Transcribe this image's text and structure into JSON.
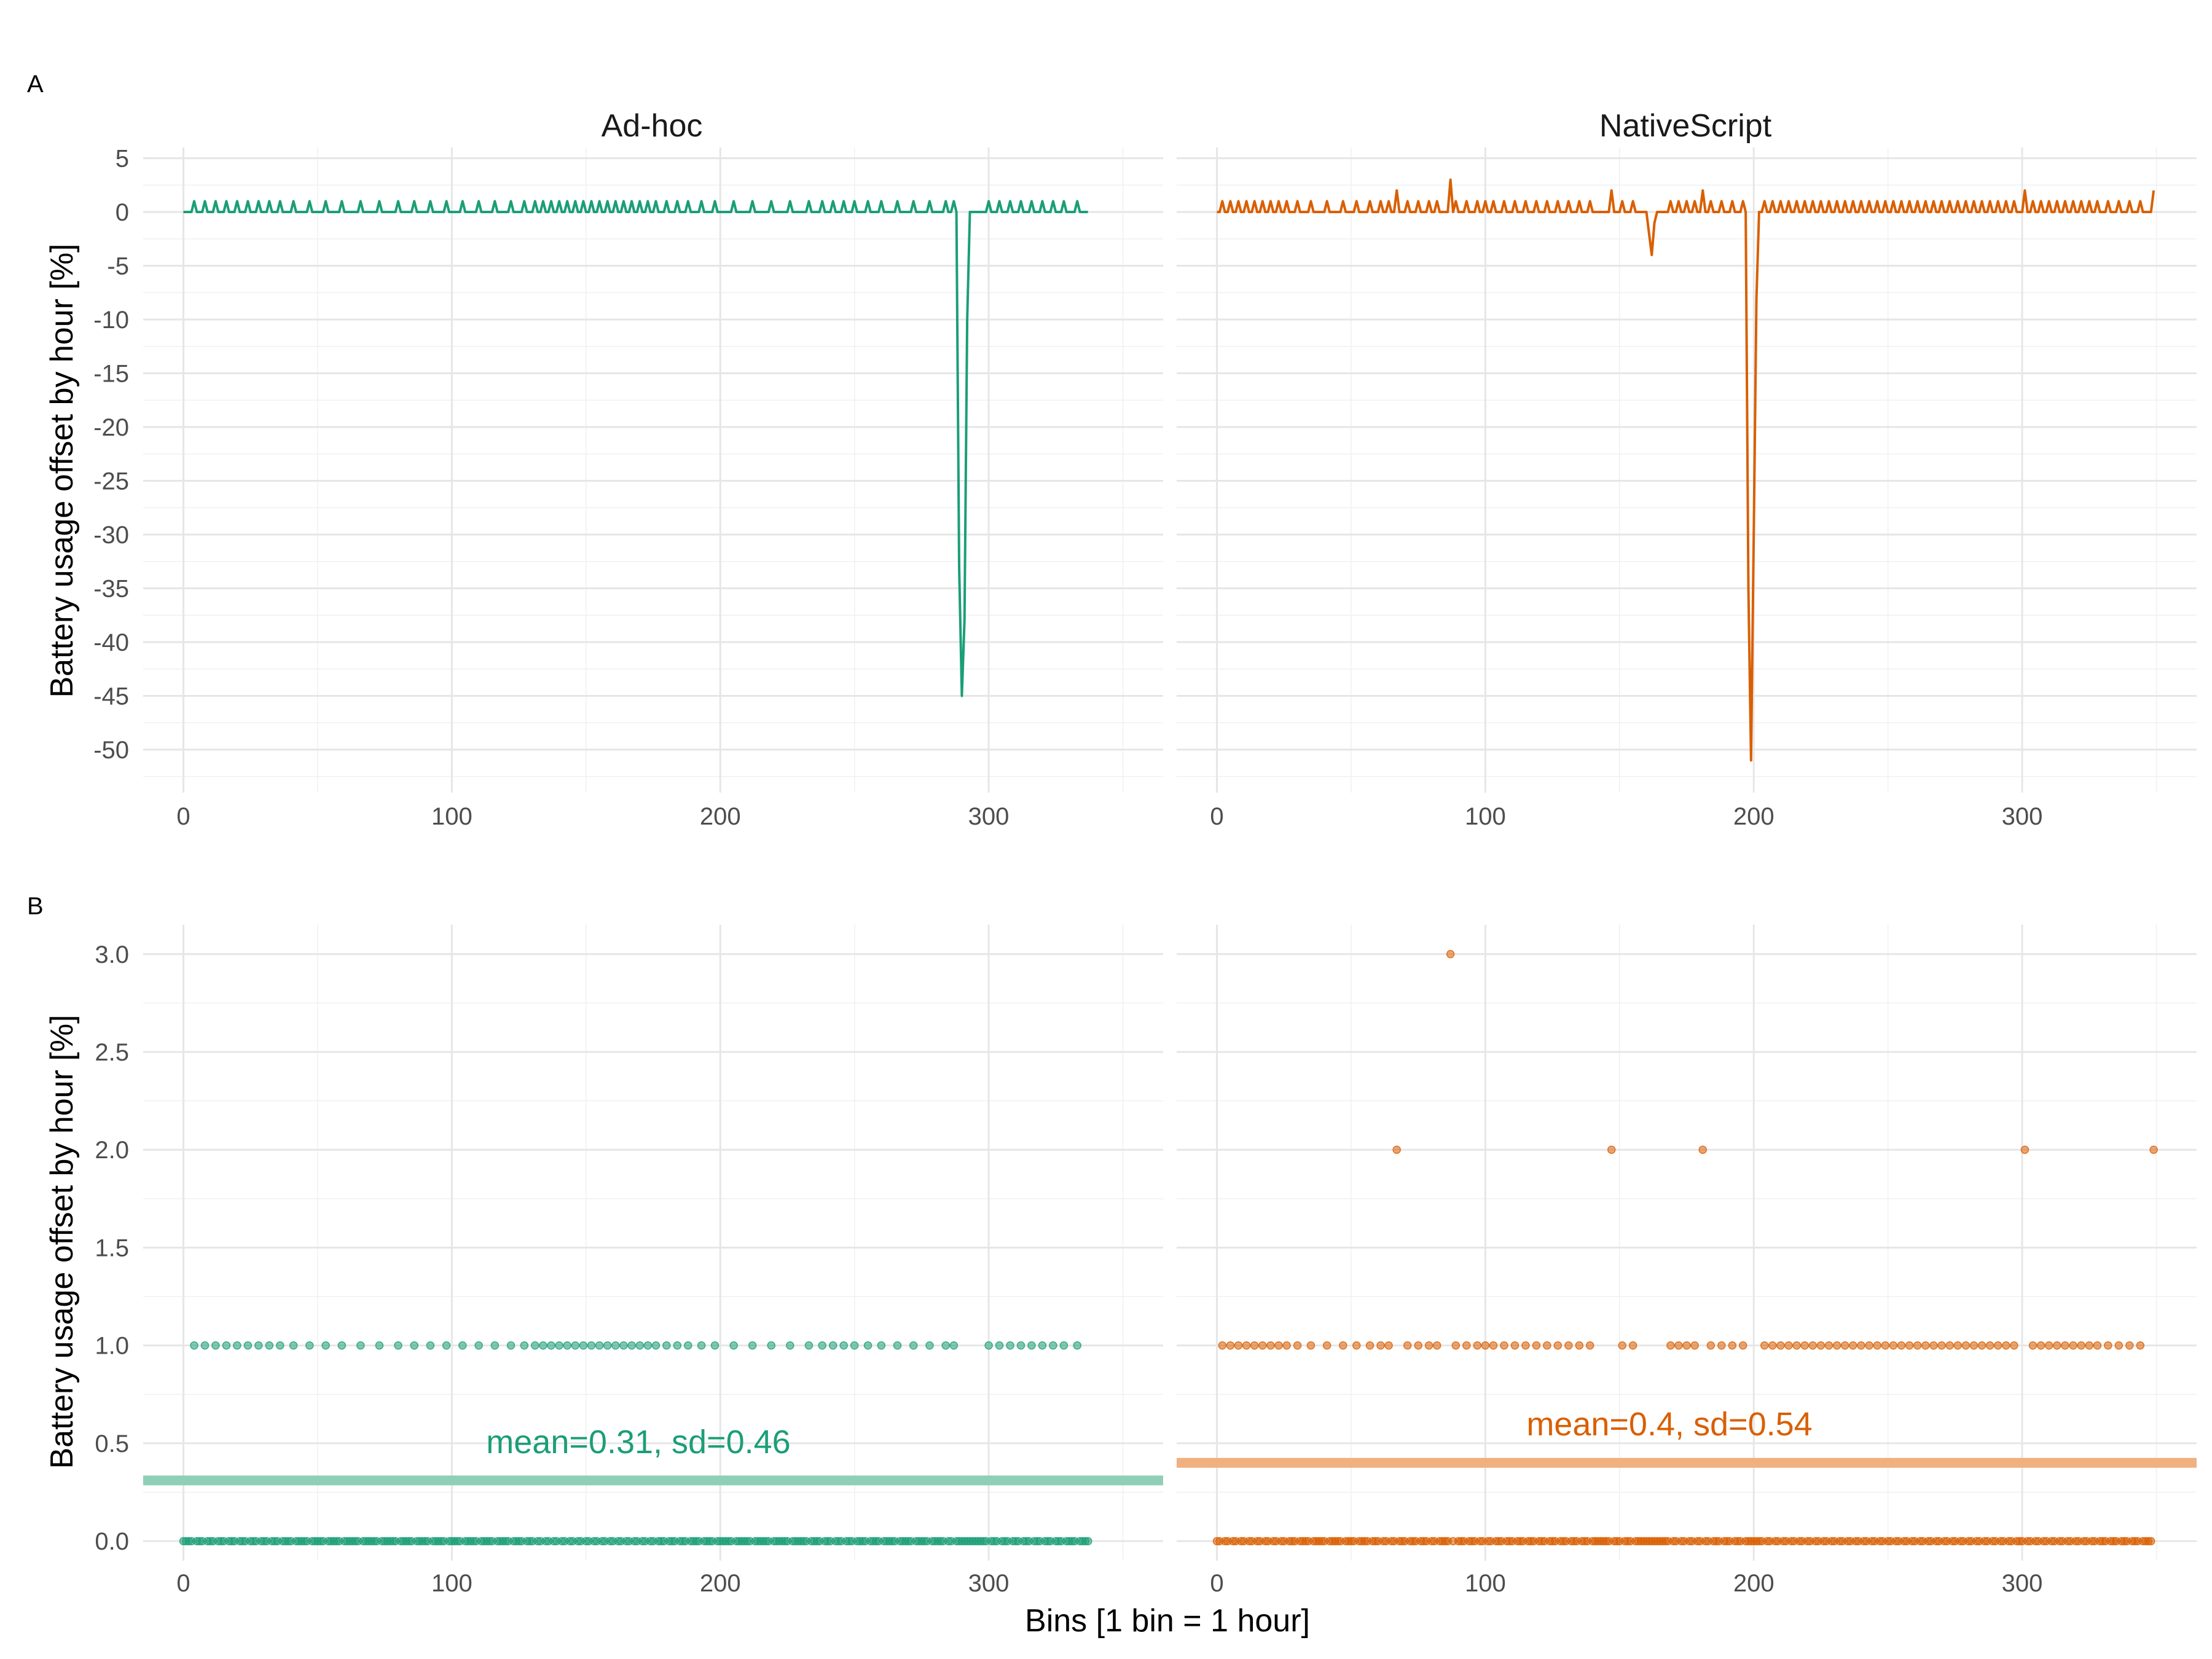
{
  "figure": {
    "panel_labels": [
      "A",
      "B"
    ],
    "x_axis_title": "Bins [1 bin = 1 hour]",
    "y_axis_title": "Battery usage offset by hour [%]",
    "colors": {
      "Ad-hoc": "#1b9e77",
      "NativeScript": "#d95f02",
      "Ad-hoc_mean_band": "#8fcfb8",
      "NativeScript_mean_band": "#f0b080"
    }
  },
  "chart_data": [
    {
      "panel": "A",
      "type": "line",
      "facets": [
        "Ad-hoc",
        "NativeScript"
      ],
      "xlim": [
        -15,
        365
      ],
      "ylim": [
        -54,
        6
      ],
      "x_ticks": [
        0,
        100,
        200,
        300
      ],
      "y_ticks": [
        5,
        0,
        -5,
        -10,
        -15,
        -20,
        -25,
        -30,
        -35,
        -40,
        -45,
        -50
      ],
      "series": [
        {
          "facet": "Ad-hoc",
          "n_bins": 338,
          "baseline": 0,
          "spike_value": 1,
          "spikes_at": [
            4,
            8,
            12,
            16,
            20,
            24,
            28,
            32,
            36,
            41,
            47,
            53,
            59,
            66,
            73,
            80,
            86,
            92,
            98,
            104,
            110,
            116,
            122,
            127,
            131,
            134,
            137,
            140,
            143,
            146,
            149,
            152,
            155,
            158,
            161,
            164,
            167,
            170,
            173,
            176,
            180,
            184,
            188,
            193,
            198,
            205,
            212,
            219,
            226,
            233,
            238,
            242,
            246,
            250,
            255,
            260,
            266,
            272,
            278,
            284,
            287,
            290,
            300,
            304,
            308,
            312,
            316,
            320,
            324,
            328,
            333
          ],
          "dips": [
            {
              "x": 288,
              "y": 0
            },
            {
              "x": 289,
              "y": -33
            },
            {
              "x": 290,
              "y": -45
            },
            {
              "x": 291,
              "y": -38
            },
            {
              "x": 292,
              "y": -10
            },
            {
              "x": 293,
              "y": 0
            }
          ]
        },
        {
          "facet": "NativeScript",
          "n_bins": 350,
          "baseline": 0,
          "spike_value": 1,
          "spikes_at": [
            2,
            5,
            8,
            11,
            14,
            17,
            20,
            23,
            26,
            30,
            35,
            41,
            47,
            52,
            57,
            61,
            64,
            71,
            75,
            79,
            82,
            89,
            93,
            97,
            100,
            103,
            107,
            111,
            115,
            119,
            123,
            127,
            131,
            135,
            139,
            151,
            155,
            169,
            172,
            175,
            178,
            184,
            188,
            192,
            196,
            204,
            207,
            210,
            213,
            216,
            219,
            222,
            225,
            228,
            231,
            234,
            237,
            240,
            243,
            246,
            249,
            252,
            255,
            258,
            261,
            264,
            267,
            270,
            273,
            276,
            279,
            282,
            285,
            288,
            291,
            294,
            297,
            304,
            307,
            310,
            313,
            316,
            319,
            322,
            325,
            328,
            332,
            336,
            340,
            344
          ],
          "spikes_2": [
            67,
            87,
            147,
            181,
            301,
            349
          ],
          "spike_3": 87,
          "dips": [
            {
              "x": 160,
              "y": 0
            },
            {
              "x": 161,
              "y": -2
            },
            {
              "x": 162,
              "y": -4
            },
            {
              "x": 163,
              "y": -1
            },
            {
              "x": 164,
              "y": 0
            },
            {
              "x": 197,
              "y": 0
            },
            {
              "x": 198,
              "y": -35
            },
            {
              "x": 199,
              "y": -51
            },
            {
              "x": 200,
              "y": -30
            },
            {
              "x": 201,
              "y": -8
            },
            {
              "x": 202,
              "y": 0
            }
          ]
        }
      ]
    },
    {
      "panel": "B",
      "type": "scatter",
      "facets": [
        "Ad-hoc",
        "NativeScript"
      ],
      "xlim": [
        -15,
        365
      ],
      "ylim": [
        -0.1,
        3.15
      ],
      "x_ticks": [
        0,
        100,
        200,
        300
      ],
      "y_ticks": [
        "0.0",
        "0.5",
        "1.0",
        "1.5",
        "2.0",
        "2.5",
        "3.0"
      ],
      "series": [
        {
          "facet": "Ad-hoc",
          "mean": 0.31,
          "sd": 0.46,
          "annotation": "mean=0.31, sd=0.46"
        },
        {
          "facet": "NativeScript",
          "mean": 0.4,
          "sd": 0.54,
          "annotation": "mean=0.4, sd=0.54"
        }
      ]
    }
  ]
}
